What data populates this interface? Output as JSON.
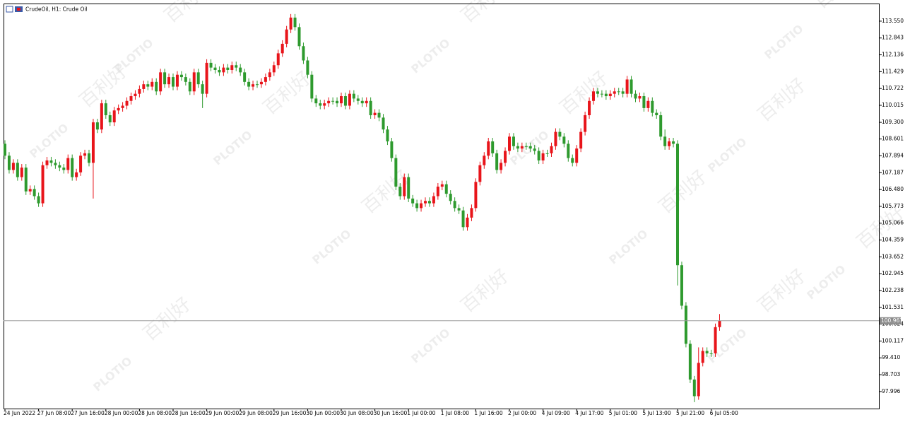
{
  "chart_data": {
    "type": "candlestick",
    "title": "CrudeOil, H1:  Crude Oil",
    "watermark": {
      "brand": "PLOTIO",
      "name": "百利好"
    },
    "up_color": "#e8141a",
    "down_color": "#2e9a2e",
    "categories": [
      "24 Jun 2022",
      null,
      null,
      null,
      null,
      null,
      null,
      null,
      "27 Jun 08:00",
      null,
      null,
      null,
      null,
      null,
      null,
      null,
      "27 Jun 16:00",
      null,
      null,
      null,
      null,
      null,
      null,
      null,
      "28 Jun 00:00",
      null,
      null,
      null,
      null,
      null,
      null,
      null,
      "28 Jun 08:00",
      null,
      null,
      null,
      null,
      null,
      null,
      null,
      "28 Jun 16:00",
      null,
      null,
      null,
      null,
      null,
      null,
      null,
      "29 Jun 00:00",
      null,
      null,
      null,
      null,
      null,
      null,
      null,
      "29 Jun 08:00",
      null,
      null,
      null,
      null,
      null,
      null,
      null,
      "29 Jun 16:00",
      null,
      null,
      null,
      null,
      null,
      null,
      null,
      "30 Jun 00:00",
      null,
      null,
      null,
      null,
      null,
      null,
      null,
      "30 Jun 08:00",
      null,
      null,
      null,
      null,
      null,
      null,
      null,
      "30 Jun 16:00",
      null,
      null,
      null,
      null,
      null,
      null,
      null,
      "1 Jul 00:00",
      null,
      null,
      null,
      null,
      null,
      null,
      null,
      "1 Jul 08:00",
      null,
      null,
      null,
      null,
      null,
      null,
      null,
      "1 Jul 16:00",
      null,
      null,
      null,
      null,
      null,
      null,
      null,
      "2 Jul 00:00",
      null,
      null,
      null,
      null,
      null,
      null,
      null,
      "4 Jul 09:00",
      null,
      null,
      null,
      null,
      null,
      null,
      null,
      "4 Jul 17:00",
      null,
      null,
      null,
      null,
      null,
      null,
      null,
      "5 Jul 01:00",
      null,
      null,
      null,
      null,
      null,
      null,
      null,
      "5 Jul 13:00",
      null,
      null,
      null,
      null,
      null,
      null,
      null,
      "5 Jul 21:00",
      null,
      null,
      null,
      null,
      null,
      null,
      null,
      "6 Jul 05:00",
      null,
      null
    ],
    "open": [
      108.4,
      107.9,
      107.3,
      107.6,
      107.0,
      107.4,
      106.4,
      106.5,
      106.2,
      105.9,
      107.5,
      107.7,
      107.6,
      107.5,
      107.4,
      107.3,
      107.8,
      107.0,
      107.2,
      107.9,
      108.0,
      107.6,
      109.3,
      109.0,
      110.1,
      109.6,
      109.3,
      109.8,
      109.9,
      110.0,
      110.2,
      110.4,
      110.5,
      110.7,
      110.9,
      110.8,
      111.0,
      110.6,
      111.4,
      110.9,
      111.2,
      110.8,
      111.3,
      111.2,
      111.0,
      110.6,
      111.4,
      110.9,
      110.5,
      111.8,
      111.6,
      111.5,
      111.4,
      111.6,
      111.5,
      111.7,
      111.6,
      111.4,
      111.0,
      110.8,
      110.9,
      110.9,
      111.0,
      111.2,
      111.4,
      111.7,
      112.2,
      112.6,
      113.2,
      113.7,
      113.3,
      112.5,
      111.9,
      111.3,
      110.3,
      110.1,
      110.0,
      110.1,
      110.2,
      110.2,
      110.1,
      110.4,
      110.0,
      110.5,
      110.3,
      110.2,
      110.1,
      110.2,
      109.6,
      109.7,
      109.5,
      109.0,
      108.5,
      107.8,
      106.6,
      106.2,
      107.0,
      106.1,
      105.9,
      105.7,
      105.9,
      106.0,
      105.9,
      106.2,
      106.6,
      106.7,
      106.3,
      106.0,
      105.7,
      105.6,
      104.9,
      105.3,
      105.7,
      106.8,
      107.5,
      107.9,
      108.5,
      108.0,
      107.3,
      107.6,
      108.1,
      108.7,
      108.3,
      108.2,
      108.3,
      108.3,
      108.2,
      108.1,
      107.7,
      108.0,
      108.0,
      108.3,
      108.9,
      108.7,
      108.4,
      107.8,
      107.6,
      108.2,
      108.9,
      109.6,
      110.2,
      110.6,
      110.5,
      110.5,
      110.4,
      110.5,
      110.6,
      110.6,
      110.5,
      111.1,
      110.5,
      110.3,
      110.4,
      109.9,
      110.2,
      109.7,
      109.6,
      108.7,
      108.3,
      108.5,
      108.4,
      103.3,
      101.6,
      100.0,
      98.5,
      97.8,
      99.2,
      99.7,
      99.6,
      99.6,
      100.7
    ],
    "high": [
      108.55,
      108.05,
      107.75,
      107.75,
      107.55,
      107.55,
      106.65,
      106.65,
      106.35,
      107.65,
      107.85,
      107.85,
      107.75,
      107.65,
      107.55,
      107.95,
      107.95,
      107.35,
      108.05,
      108.15,
      108.15,
      109.45,
      109.45,
      110.25,
      110.25,
      109.75,
      109.95,
      110.05,
      110.15,
      110.35,
      110.55,
      110.65,
      110.85,
      111.05,
      111.05,
      111.15,
      111.15,
      111.55,
      111.55,
      111.35,
      111.35,
      111.45,
      111.45,
      111.35,
      111.15,
      111.55,
      111.55,
      111.05,
      111.95,
      111.95,
      111.75,
      111.65,
      111.75,
      111.75,
      111.85,
      111.85,
      111.75,
      111.55,
      111.15,
      111.05,
      111.05,
      111.15,
      111.35,
      111.55,
      111.85,
      112.35,
      112.75,
      113.35,
      113.85,
      113.85,
      113.45,
      112.65,
      112.05,
      111.45,
      110.45,
      110.25,
      110.25,
      110.35,
      110.35,
      110.35,
      110.55,
      110.55,
      110.65,
      110.65,
      110.45,
      110.35,
      110.35,
      110.35,
      109.85,
      109.85,
      109.65,
      109.15,
      108.65,
      107.95,
      106.75,
      107.15,
      107.15,
      106.25,
      106.05,
      106.05,
      106.15,
      106.15,
      106.35,
      106.75,
      106.85,
      106.85,
      106.45,
      106.15,
      105.85,
      105.75,
      105.45,
      105.85,
      106.95,
      107.65,
      108.05,
      108.65,
      108.65,
      108.15,
      107.75,
      108.25,
      108.85,
      108.85,
      108.45,
      108.45,
      108.45,
      108.45,
      108.35,
      108.25,
      108.15,
      108.15,
      108.45,
      109.05,
      109.05,
      108.85,
      108.55,
      107.95,
      108.35,
      109.05,
      109.75,
      110.35,
      110.75,
      110.75,
      110.65,
      110.65,
      110.65,
      110.75,
      110.75,
      110.75,
      111.25,
      111.25,
      110.65,
      110.55,
      110.55,
      110.35,
      110.35,
      109.85,
      109.75,
      109.0,
      108.65,
      108.65,
      108.55,
      103.45,
      101.75,
      100.15,
      98.65,
      99.85,
      99.85,
      99.85,
      99.75,
      100.85,
      101.25
    ],
    "low": [
      107.75,
      107.15,
      107.15,
      106.85,
      106.85,
      106.25,
      106.25,
      106.05,
      105.75,
      105.75,
      107.35,
      107.45,
      107.35,
      107.25,
      107.15,
      107.15,
      106.85,
      106.85,
      107.05,
      107.75,
      107.45,
      106.1,
      108.85,
      108.85,
      109.45,
      109.15,
      109.15,
      109.65,
      109.75,
      109.85,
      110.05,
      110.25,
      110.35,
      110.55,
      110.65,
      110.65,
      110.45,
      110.45,
      110.75,
      110.75,
      110.65,
      110.65,
      111.05,
      110.85,
      110.45,
      110.45,
      110.75,
      109.9,
      110.35,
      111.45,
      111.35,
      111.25,
      111.25,
      111.35,
      111.35,
      111.45,
      111.25,
      110.85,
      110.65,
      110.65,
      110.75,
      110.75,
      110.85,
      111.05,
      111.25,
      111.55,
      112.05,
      112.45,
      113.05,
      113.15,
      112.35,
      111.75,
      111.15,
      110.15,
      109.95,
      109.85,
      109.85,
      109.95,
      110.05,
      109.95,
      109.95,
      109.85,
      109.85,
      110.15,
      110.05,
      109.95,
      109.95,
      109.45,
      109.45,
      109.35,
      108.85,
      108.35,
      107.65,
      106.45,
      106.05,
      106.05,
      105.95,
      105.75,
      105.55,
      105.55,
      105.75,
      105.75,
      105.75,
      106.05,
      106.45,
      106.15,
      105.85,
      105.55,
      105.45,
      104.75,
      104.75,
      105.15,
      105.55,
      106.65,
      107.35,
      107.75,
      107.85,
      107.15,
      107.15,
      107.45,
      107.95,
      108.15,
      108.05,
      108.05,
      108.15,
      108.05,
      107.95,
      107.55,
      107.55,
      107.85,
      107.85,
      108.15,
      108.55,
      108.25,
      107.65,
      107.45,
      107.45,
      108.05,
      108.75,
      109.45,
      110.05,
      110.35,
      110.35,
      110.25,
      110.25,
      110.35,
      110.45,
      110.35,
      110.35,
      110.35,
      110.15,
      110.15,
      109.75,
      109.75,
      109.55,
      109.45,
      108.55,
      108.15,
      108.15,
      108.25,
      102.45,
      101.45,
      99.85,
      98.35,
      97.55,
      97.65,
      99.05,
      99.45,
      99.45,
      99.45,
      100.55
    ],
    "close": [
      107.9,
      107.3,
      107.6,
      107.0,
      107.4,
      106.4,
      106.5,
      106.2,
      105.9,
      107.5,
      107.7,
      107.6,
      107.5,
      107.4,
      107.3,
      107.8,
      107.0,
      107.2,
      107.9,
      108.0,
      107.6,
      109.3,
      109.0,
      110.1,
      109.6,
      109.3,
      109.8,
      109.9,
      110.0,
      110.2,
      110.4,
      110.5,
      110.7,
      110.9,
      110.8,
      111.0,
      110.6,
      111.4,
      110.9,
      111.2,
      110.8,
      111.3,
      111.2,
      111.0,
      110.6,
      111.4,
      110.9,
      110.5,
      111.8,
      111.6,
      111.5,
      111.4,
      111.6,
      111.5,
      111.7,
      111.6,
      111.4,
      111.0,
      110.8,
      110.9,
      110.9,
      111.0,
      111.2,
      111.4,
      111.7,
      112.2,
      112.6,
      113.2,
      113.7,
      113.3,
      112.5,
      111.9,
      111.3,
      110.3,
      110.1,
      110.0,
      110.1,
      110.2,
      110.2,
      110.1,
      110.4,
      110.0,
      110.5,
      110.3,
      110.2,
      110.1,
      110.2,
      109.6,
      109.7,
      109.5,
      109.0,
      108.5,
      107.8,
      106.6,
      106.2,
      107.0,
      106.1,
      105.9,
      105.7,
      105.9,
      106.0,
      105.9,
      106.2,
      106.6,
      106.7,
      106.3,
      106.0,
      105.7,
      105.6,
      104.9,
      105.3,
      105.7,
      106.8,
      107.5,
      107.9,
      108.5,
      108.0,
      107.3,
      107.6,
      108.1,
      108.7,
      108.3,
      108.2,
      108.3,
      108.3,
      108.2,
      108.1,
      107.7,
      108.0,
      108.0,
      108.3,
      108.9,
      108.7,
      108.4,
      107.8,
      107.6,
      108.2,
      108.9,
      109.6,
      110.2,
      110.6,
      110.5,
      110.5,
      110.4,
      110.5,
      110.6,
      110.6,
      110.5,
      111.1,
      110.5,
      110.3,
      110.4,
      109.9,
      110.2,
      109.7,
      109.6,
      108.7,
      108.3,
      108.5,
      108.4,
      103.3,
      101.6,
      100.0,
      98.5,
      97.8,
      99.2,
      99.7,
      99.6,
      99.6,
      100.7,
      100.97
    ],
    "current_price": 100.967,
    "ylim": [
      97.28,
      114.29
    ],
    "yticks": [
      {
        "value": 113.55,
        "label": "113.550"
      },
      112.843,
      112.136,
      111.429,
      110.722,
      110.015,
      {
        "value": 109.3,
        "label": "109.300"
      },
      108.601,
      107.894,
      107.187,
      {
        "value": 106.48,
        "label": "106.480"
      },
      105.773,
      105.066,
      104.359,
      103.652,
      102.945,
      102.238,
      101.531,
      100.824,
      100.117,
      {
        "value": 99.41,
        "label": "99.410"
      },
      98.703,
      97.996
    ]
  }
}
